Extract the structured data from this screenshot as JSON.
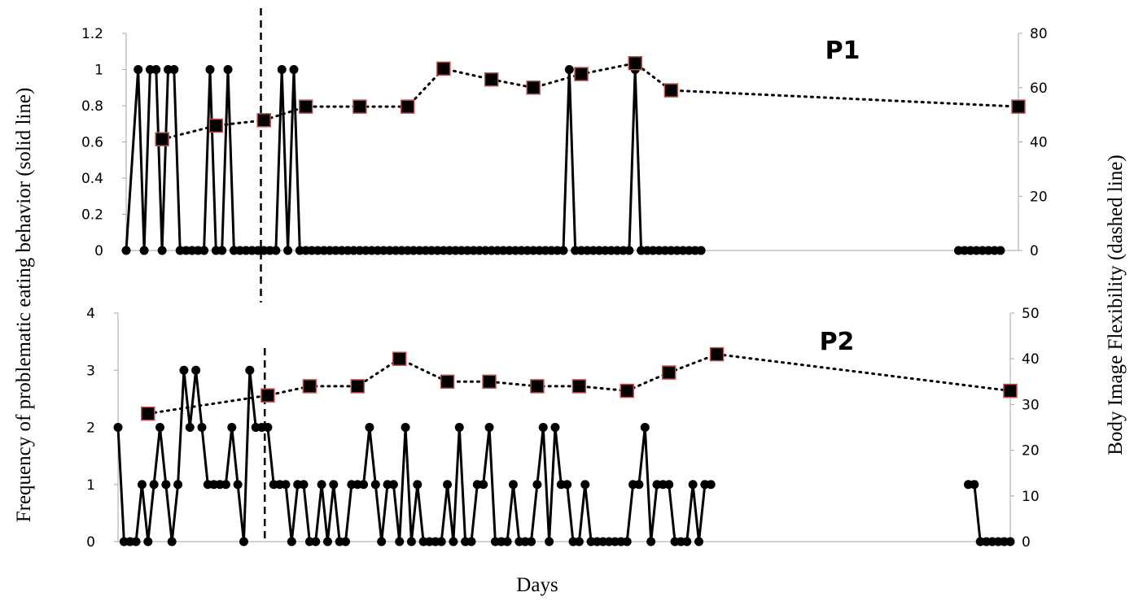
{
  "chart_data": [
    {
      "type": "line",
      "panel_label": "P1",
      "ylim_left": [
        0,
        1.2
      ],
      "yticks_left": [
        "0",
        "0.2",
        "0.4",
        "0.6",
        "0.8",
        "1",
        "1.2"
      ],
      "ylim_right": [
        0,
        80
      ],
      "yticks_right": [
        "0",
        "20",
        "40",
        "60",
        "80"
      ],
      "xlim": [
        1,
        150
      ],
      "phase_change_day": 23.5,
      "series": [
        {
          "style": "solid",
          "values": [
            [
              1,
              0
            ],
            [
              3,
              1
            ],
            [
              4,
              0
            ],
            [
              5,
              1
            ],
            [
              6,
              1
            ],
            [
              7,
              0
            ],
            [
              8,
              1
            ],
            [
              9,
              1
            ],
            [
              10,
              0
            ],
            [
              11,
              0
            ],
            [
              12,
              0
            ],
            [
              13,
              0
            ],
            [
              14,
              0
            ],
            [
              15,
              1
            ],
            [
              16,
              0
            ],
            [
              17,
              0
            ],
            [
              18,
              1
            ],
            [
              19,
              0
            ],
            [
              20,
              0
            ],
            [
              21,
              0
            ],
            [
              22,
              0
            ],
            [
              23,
              0
            ],
            [
              24,
              0
            ],
            [
              25,
              0
            ],
            [
              26,
              0
            ],
            [
              27,
              1
            ],
            [
              28,
              0
            ],
            [
              29,
              1
            ],
            [
              30,
              0
            ],
            [
              31,
              0
            ],
            [
              32,
              0
            ],
            [
              33,
              0
            ],
            [
              34,
              0
            ],
            [
              35,
              0
            ],
            [
              36,
              0
            ],
            [
              37,
              0
            ],
            [
              38,
              0
            ],
            [
              39,
              0
            ],
            [
              40,
              0
            ],
            [
              41,
              0
            ],
            [
              42,
              0
            ],
            [
              43,
              0
            ],
            [
              44,
              0
            ],
            [
              45,
              0
            ],
            [
              46,
              0
            ],
            [
              47,
              0
            ],
            [
              48,
              0
            ],
            [
              49,
              0
            ],
            [
              50,
              0
            ],
            [
              51,
              0
            ],
            [
              52,
              0
            ],
            [
              53,
              0
            ],
            [
              54,
              0
            ],
            [
              55,
              0
            ],
            [
              56,
              0
            ],
            [
              57,
              0
            ],
            [
              58,
              0
            ],
            [
              59,
              0
            ],
            [
              60,
              0
            ],
            [
              61,
              0
            ],
            [
              62,
              0
            ],
            [
              63,
              0
            ],
            [
              64,
              0
            ],
            [
              65,
              0
            ],
            [
              66,
              0
            ],
            [
              67,
              0
            ],
            [
              68,
              0
            ],
            [
              69,
              0
            ],
            [
              70,
              0
            ],
            [
              71,
              0
            ],
            [
              72,
              0
            ],
            [
              73,
              0
            ],
            [
              74,
              0
            ],
            [
              75,
              1
            ],
            [
              76,
              0
            ],
            [
              77,
              0
            ],
            [
              78,
              0
            ],
            [
              79,
              0
            ],
            [
              80,
              0
            ],
            [
              81,
              0
            ],
            [
              82,
              0
            ],
            [
              83,
              0
            ],
            [
              84,
              0
            ],
            [
              85,
              0
            ],
            [
              86,
              1
            ],
            [
              87,
              0
            ],
            [
              88,
              0
            ],
            [
              89,
              0
            ],
            [
              90,
              0
            ],
            [
              91,
              0
            ],
            [
              92,
              0
            ],
            [
              93,
              0
            ],
            [
              94,
              0
            ],
            [
              95,
              0
            ],
            [
              96,
              0
            ],
            [
              97,
              0
            ],
            [
              140,
              0
            ],
            [
              141,
              0
            ],
            [
              142,
              0
            ],
            [
              143,
              0
            ],
            [
              144,
              0
            ],
            [
              145,
              0
            ],
            [
              146,
              0
            ],
            [
              147,
              0
            ]
          ]
        },
        {
          "style": "dotted",
          "axis": "right",
          "values": [
            [
              7,
              41
            ],
            [
              16,
              46
            ],
            [
              24,
              48
            ],
            [
              31,
              53
            ],
            [
              40,
              53
            ],
            [
              48,
              53
            ],
            [
              54,
              67
            ],
            [
              62,
              63
            ],
            [
              69,
              60
            ],
            [
              77,
              65
            ],
            [
              86,
              69
            ],
            [
              92,
              59
            ],
            [
              150,
              53
            ]
          ]
        }
      ]
    },
    {
      "type": "line",
      "panel_label": "P2",
      "ylim_left": [
        0,
        4
      ],
      "yticks_left": [
        "0",
        "1",
        "2",
        "3",
        "4"
      ],
      "ylim_right": [
        0,
        50
      ],
      "yticks_right": [
        "0",
        "10",
        "20",
        "30",
        "40",
        "50"
      ],
      "xlim": [
        1,
        150
      ],
      "phase_change_day": 25.5,
      "series": [
        {
          "style": "solid",
          "values": [
            [
              1,
              2
            ],
            [
              2,
              0
            ],
            [
              3,
              0
            ],
            [
              4,
              0
            ],
            [
              5,
              1
            ],
            [
              6,
              0
            ],
            [
              7,
              1
            ],
            [
              8,
              2
            ],
            [
              9,
              1
            ],
            [
              10,
              0
            ],
            [
              11,
              1
            ],
            [
              12,
              3
            ],
            [
              13,
              2
            ],
            [
              14,
              3
            ],
            [
              15,
              2
            ],
            [
              16,
              1
            ],
            [
              17,
              1
            ],
            [
              18,
              1
            ],
            [
              19,
              1
            ],
            [
              20,
              2
            ],
            [
              21,
              1
            ],
            [
              22,
              0
            ],
            [
              23,
              3
            ],
            [
              24,
              2
            ],
            [
              25,
              2
            ],
            [
              26,
              2
            ],
            [
              27,
              1
            ],
            [
              28,
              1
            ],
            [
              29,
              1
            ],
            [
              30,
              0
            ],
            [
              31,
              1
            ],
            [
              32,
              1
            ],
            [
              33,
              0
            ],
            [
              34,
              0
            ],
            [
              35,
              1
            ],
            [
              36,
              0
            ],
            [
              37,
              1
            ],
            [
              38,
              0
            ],
            [
              39,
              0
            ],
            [
              40,
              1
            ],
            [
              41,
              1
            ],
            [
              42,
              1
            ],
            [
              43,
              2
            ],
            [
              44,
              1
            ],
            [
              45,
              0
            ],
            [
              46,
              1
            ],
            [
              47,
              1
            ],
            [
              48,
              0
            ],
            [
              49,
              2
            ],
            [
              50,
              0
            ],
            [
              51,
              1
            ],
            [
              52,
              0
            ],
            [
              53,
              0
            ],
            [
              54,
              0
            ],
            [
              55,
              0
            ],
            [
              56,
              1
            ],
            [
              57,
              0
            ],
            [
              58,
              2
            ],
            [
              59,
              0
            ],
            [
              60,
              0
            ],
            [
              61,
              1
            ],
            [
              62,
              1
            ],
            [
              63,
              2
            ],
            [
              64,
              0
            ],
            [
              65,
              0
            ],
            [
              66,
              0
            ],
            [
              67,
              1
            ],
            [
              68,
              0
            ],
            [
              69,
              0
            ],
            [
              70,
              0
            ],
            [
              71,
              1
            ],
            [
              72,
              2
            ],
            [
              73,
              0
            ],
            [
              74,
              2
            ],
            [
              75,
              1
            ],
            [
              76,
              1
            ],
            [
              77,
              0
            ],
            [
              78,
              0
            ],
            [
              79,
              1
            ],
            [
              80,
              0
            ],
            [
              81,
              0
            ],
            [
              82,
              0
            ],
            [
              83,
              0
            ],
            [
              84,
              0
            ],
            [
              85,
              0
            ],
            [
              86,
              0
            ],
            [
              87,
              1
            ],
            [
              88,
              1
            ],
            [
              89,
              2
            ],
            [
              90,
              0
            ],
            [
              91,
              1
            ],
            [
              92,
              1
            ],
            [
              93,
              1
            ],
            [
              94,
              0
            ],
            [
              95,
              0
            ],
            [
              96,
              0
            ],
            [
              97,
              1
            ],
            [
              98,
              0
            ],
            [
              99,
              1
            ],
            [
              100,
              1
            ],
            [
              143,
              1
            ],
            [
              144,
              1
            ],
            [
              145,
              0
            ],
            [
              146,
              0
            ],
            [
              147,
              0
            ],
            [
              148,
              0
            ],
            [
              149,
              0
            ],
            [
              150,
              0
            ]
          ]
        },
        {
          "style": "dotted",
          "axis": "right",
          "values": [
            [
              6,
              28
            ],
            [
              26,
              32
            ],
            [
              33,
              34
            ],
            [
              41,
              34
            ],
            [
              48,
              40
            ],
            [
              56,
              35
            ],
            [
              63,
              35
            ],
            [
              71,
              34
            ],
            [
              78,
              34
            ],
            [
              86,
              33
            ],
            [
              93,
              37
            ],
            [
              101,
              41
            ],
            [
              150,
              33
            ]
          ]
        }
      ]
    }
  ],
  "labels": {
    "y_left": "Frequency of problematic eating behavior (solid line)",
    "y_right": "Body Image Flexibility (dashed line)",
    "x": "Days"
  },
  "colors": {
    "line": "#000000",
    "marker_dot": "#000000",
    "marker_square_fill": "#000000",
    "marker_square_edge": "#c0504d",
    "axis": "#a6a6a6"
  }
}
